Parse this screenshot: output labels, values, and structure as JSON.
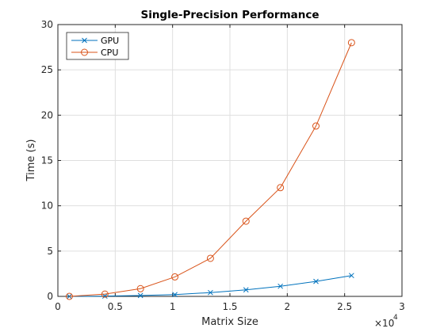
{
  "chart_data": {
    "type": "line",
    "title": "Single-Precision Performance",
    "xlabel": "Matrix Size",
    "ylabel": "Time (s)",
    "x_exponent_label": "×10",
    "x_exponent_power": "4",
    "xlim": [
      0,
      3
    ],
    "ylim": [
      0,
      30
    ],
    "xticks": [
      "0",
      "0.5",
      "1",
      "1.5",
      "2",
      "2.5",
      "3"
    ],
    "yticks": [
      "0",
      "5",
      "10",
      "15",
      "20",
      "25",
      "30"
    ],
    "xtick_values": [
      0,
      0.5,
      1,
      1.5,
      2,
      2.5,
      3
    ],
    "ytick_values": [
      0,
      5,
      10,
      15,
      20,
      25,
      30
    ],
    "grid": true,
    "legend_position": "top-left",
    "x": [
      0.1,
      0.41,
      0.72,
      1.02,
      1.33,
      1.64,
      1.94,
      2.25,
      2.56
    ],
    "series": [
      {
        "name": "GPU",
        "color": "#0072bd",
        "marker": "x",
        "values": [
          0.0,
          0.03,
          0.1,
          0.2,
          0.42,
          0.72,
          1.12,
          1.65,
          2.3
        ]
      },
      {
        "name": "CPU",
        "color": "#d95319",
        "marker": "circle",
        "values": [
          0.0,
          0.25,
          0.85,
          2.15,
          4.2,
          8.3,
          12.0,
          18.8,
          28.0
        ]
      }
    ]
  }
}
